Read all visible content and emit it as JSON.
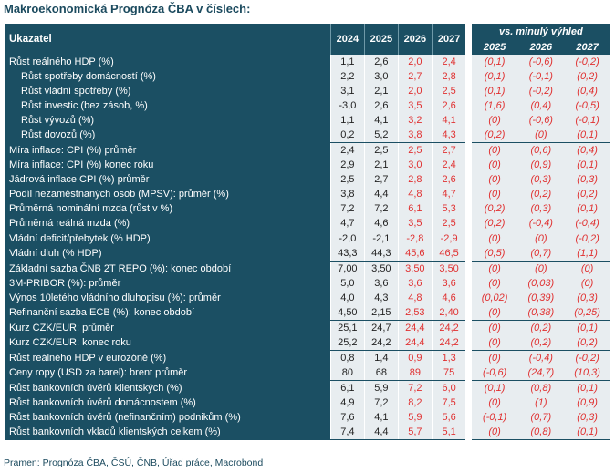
{
  "title": "Makroekonomická Prognóza ČBA v číslech:",
  "header": {
    "label": "Ukazatel",
    "years": [
      "2024",
      "2025",
      "2026",
      "2027"
    ],
    "vs_label": "vs. minulý výhled",
    "vs_years": [
      "2025",
      "2026",
      "2027"
    ]
  },
  "groups": [
    {
      "rows": [
        {
          "label": "Růst reálného HDP (%)",
          "sub": false,
          "vals": [
            "1,1",
            "2,6",
            "2,0",
            "2,4"
          ],
          "vs": [
            "(0,1)",
            "(-0,6)",
            "(-0,2)"
          ]
        },
        {
          "label": "Růst spotřeby domácností (%)",
          "sub": true,
          "vals": [
            "2,2",
            "3,0",
            "2,7",
            "2,8"
          ],
          "vs": [
            "(0,1)",
            "(-0,1)",
            "(0,2)"
          ]
        },
        {
          "label": "Růst vládní spotřeby (%)",
          "sub": true,
          "vals": [
            "3,1",
            "2,1",
            "2,0",
            "2,5"
          ],
          "vs": [
            "(0,1)",
            "(-0,2)",
            "(0,4)"
          ]
        },
        {
          "label": "Růst investic (bez zásob, %)",
          "sub": true,
          "vals": [
            "-3,0",
            "2,6",
            "3,5",
            "2,6"
          ],
          "vs": [
            "(1,6)",
            "(0,4)",
            "(-0,5)"
          ]
        },
        {
          "label": "Růst vývozů (%)",
          "sub": true,
          "vals": [
            "1,1",
            "4,1",
            "3,2",
            "4,1"
          ],
          "vs": [
            "(0)",
            "(-0,6)",
            "(-0,1)"
          ]
        },
        {
          "label": "Růst dovozů (%)",
          "sub": true,
          "vals": [
            "0,2",
            "5,2",
            "3,8",
            "4,3"
          ],
          "vs": [
            "(0,2)",
            "(0)",
            "(0,1)"
          ]
        }
      ]
    },
    {
      "rows": [
        {
          "label": "Míra inflace: CPI (%) průměr",
          "sub": false,
          "vals": [
            "2,4",
            "2,5",
            "2,5",
            "2,7"
          ],
          "vs": [
            "(0)",
            "(0,6)",
            "(0,4)"
          ]
        },
        {
          "label": "Míra inflace: CPI (%) konec roku",
          "sub": false,
          "vals": [
            "2,9",
            "2,1",
            "3,0",
            "2,4"
          ],
          "vs": [
            "(0)",
            "(0,9)",
            "(0,1)"
          ]
        },
        {
          "label": "Jádrová inflace CPI (%) průměr",
          "sub": false,
          "vals": [
            "2,5",
            "2,7",
            "2,8",
            "2,6"
          ],
          "vs": [
            "(0)",
            "(0,3)",
            "(0,3)"
          ]
        },
        {
          "label": "Podíl nezaměstnaných osob (MPSV): průměr (%)",
          "sub": false,
          "vals": [
            "3,8",
            "4,4",
            "4,8",
            "4,7"
          ],
          "vs": [
            "(0)",
            "(0,2)",
            "(0,2)"
          ]
        },
        {
          "label": "Průměrná nominální mzda (růst v %)",
          "sub": false,
          "vals": [
            "7,2",
            "7,2",
            "6,1",
            "5,3"
          ],
          "vs": [
            "(0,2)",
            "(0,3)",
            "(0,1)"
          ]
        },
        {
          "label": "Průměrná reálná mzda (%)",
          "sub": false,
          "vals": [
            "4,7",
            "4,6",
            "3,5",
            "2,5"
          ],
          "vs": [
            "(0,2)",
            "(-0,4)",
            "(-0,4)"
          ]
        }
      ]
    },
    {
      "rows": [
        {
          "label": "Vládní deficit/přebytek (% HDP)",
          "sub": false,
          "vals": [
            "-2,0",
            "-2,1",
            "-2,8",
            "-2,9"
          ],
          "vs": [
            "(0)",
            "(0)",
            "(-0,2)"
          ]
        },
        {
          "label": "Vládní dluh (% HDP)",
          "sub": false,
          "vals": [
            "43,3",
            "44,3",
            "45,6",
            "46,5"
          ],
          "vs": [
            "(0,5)",
            "(0,7)",
            "(1,1)"
          ]
        }
      ]
    },
    {
      "rows": [
        {
          "label": "Základní sazba ČNB 2T REPO (%): konec období",
          "sub": false,
          "vals": [
            "7,00",
            "3,50",
            "3,50",
            "3,50"
          ],
          "vs": [
            "(0)",
            "(0)",
            "(0)"
          ]
        },
        {
          "label": "3M-PRIBOR (%): průměr",
          "sub": false,
          "vals": [
            "5,0",
            "3,6",
            "3,6",
            "3,6"
          ],
          "vs": [
            "(0)",
            "(0,03)",
            "(0)"
          ]
        },
        {
          "label": "Výnos 10letého vládního dluhopisu (%): průměr",
          "sub": false,
          "vals": [
            "4,0",
            "4,3",
            "4,8",
            "4,6"
          ],
          "vs": [
            "(0,02)",
            "(0,39)",
            "(0,3)"
          ]
        },
        {
          "label": "Refinanční sazba ECB (%): konec období",
          "sub": false,
          "vals": [
            "4,50",
            "2,15",
            "2,53",
            "2,40"
          ],
          "vs": [
            "(0)",
            "(0,38)",
            "(0,25)"
          ]
        }
      ]
    },
    {
      "rows": [
        {
          "label": "Kurz CZK/EUR: průměr",
          "sub": false,
          "vals": [
            "25,1",
            "24,7",
            "24,4",
            "24,2"
          ],
          "vs": [
            "(0)",
            "(0,2)",
            "(0,1)"
          ]
        },
        {
          "label": "Kurz CZK/EUR: konec roku",
          "sub": false,
          "vals": [
            "25,2",
            "24,2",
            "24,4",
            "24,2"
          ],
          "vs": [
            "(0)",
            "(0,2)",
            "(0,2)"
          ]
        }
      ]
    },
    {
      "rows": [
        {
          "label": "Růst reálného HDP v eurozóně (%)",
          "sub": false,
          "vals": [
            "0,8",
            "1,4",
            "0,9",
            "1,3"
          ],
          "vs": [
            "(0)",
            "(-0,4)",
            "(-0,2)"
          ]
        },
        {
          "label": "Ceny ropy (USD za barel): brent průměr",
          "sub": false,
          "vals": [
            "80",
            "68",
            "89",
            "75"
          ],
          "vs": [
            "(-0,6)",
            "(24,7)",
            "(10,3)"
          ]
        }
      ]
    },
    {
      "rows": [
        {
          "label": "Růst bankovních úvěrů klientských (%)",
          "sub": false,
          "vals": [
            "6,1",
            "5,9",
            "7,2",
            "6,0"
          ],
          "vs": [
            "(0,1)",
            "(0,8)",
            "(0,1)"
          ]
        },
        {
          "label": "Růst bankovních úvěrů domácnostem (%)",
          "sub": false,
          "vals": [
            "4,9",
            "7,2",
            "8,2",
            "7,5"
          ],
          "vs": [
            "(0)",
            "(1)",
            "(0,9)"
          ]
        },
        {
          "label": "Růst bankovních úvěrů (nefinančním) podnikům (%)",
          "sub": false,
          "vals": [
            "7,6",
            "4,1",
            "5,9",
            "5,6"
          ],
          "vs": [
            "(-0,1)",
            "(0,7)",
            "(0,3)"
          ]
        },
        {
          "label": "Růst bankovních vkladů klientských celkem (%)",
          "sub": false,
          "vals": [
            "7,4",
            "4,4",
            "5,7",
            "5,1"
          ],
          "vs": [
            "(0)",
            "(0,8)",
            "(0,1)"
          ]
        }
      ]
    }
  ],
  "source": "Pramen: Prognóza ČBA, ČSÚ, ČNB, Úřad práce, Macrobond",
  "colors": {
    "header_bg": "#1b4f63",
    "cell_bg": "#e8edf0",
    "forecast_red": "#e03030"
  }
}
